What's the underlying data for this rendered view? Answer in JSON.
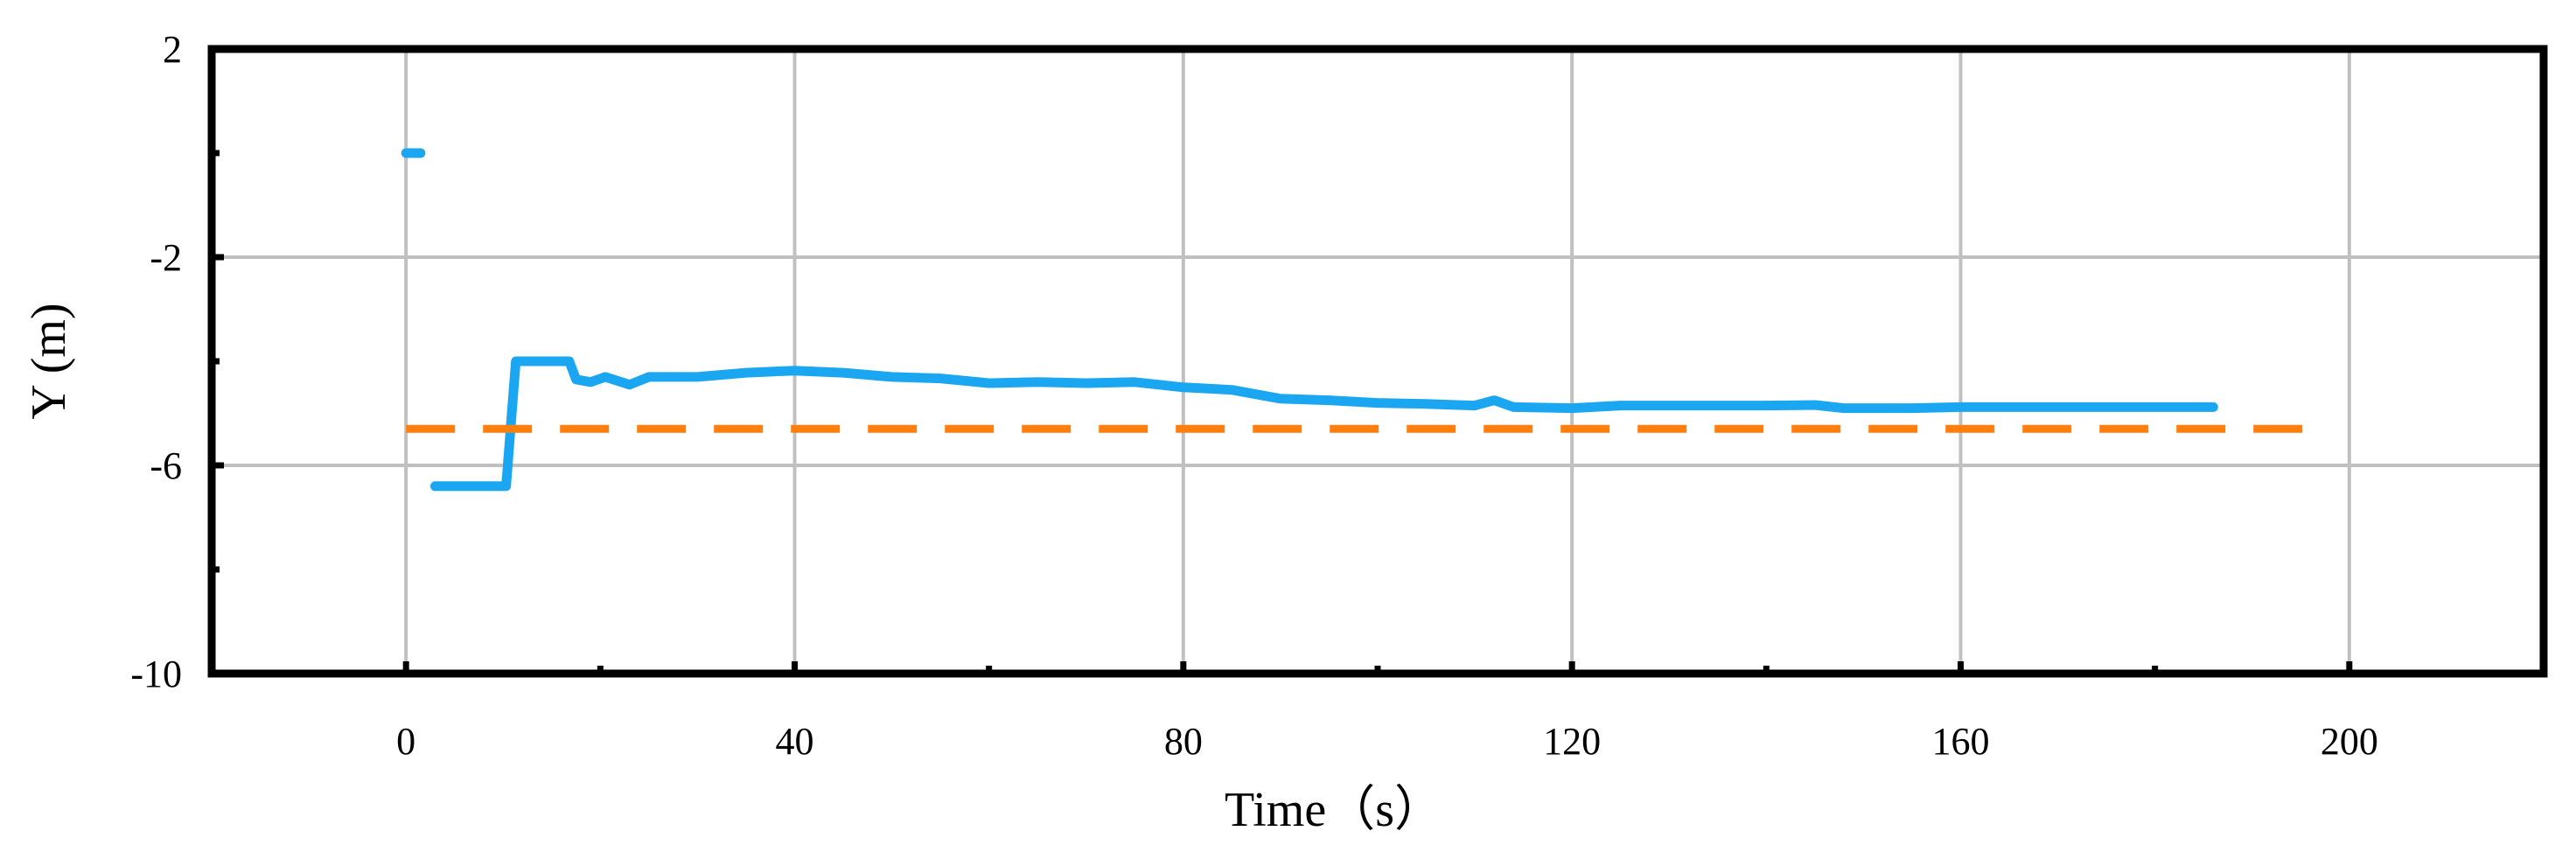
{
  "chart_data": {
    "type": "line",
    "title": "",
    "xlabel": "Time（s）",
    "ylabel": "Y (m)",
    "xlim": [
      -20,
      220
    ],
    "ylim": [
      -10,
      2
    ],
    "x_ticks": [
      0,
      40,
      80,
      120,
      160,
      200
    ],
    "y_ticks": [
      2,
      -2,
      -6,
      -10
    ],
    "x_minor_ticks": [
      20,
      60,
      100,
      140,
      180
    ],
    "y_minor_ticks": [
      0,
      -4,
      -8
    ],
    "grid": true,
    "colors": {
      "measured": "#1ba6f2",
      "reference": "#ff7f0e",
      "grid": "#c0c0c0",
      "frame": "#000000"
    },
    "series": [
      {
        "style": "solid",
        "segments": [
          [
            [
              0.0,
              0.0
            ],
            [
              1.5,
              0.0
            ]
          ],
          [
            [
              3.0,
              -6.4
            ],
            [
              10.3,
              -6.4
            ],
            [
              11.3,
              -4.0
            ],
            [
              16.8,
              -4.0
            ],
            [
              17.5,
              -4.35
            ],
            [
              19.0,
              -4.4
            ],
            [
              20.5,
              -4.3
            ],
            [
              23.0,
              -4.45
            ],
            [
              25.0,
              -4.3
            ],
            [
              30.0,
              -4.3
            ],
            [
              35.0,
              -4.22
            ],
            [
              40.0,
              -4.18
            ],
            [
              45.0,
              -4.22
            ],
            [
              50.0,
              -4.3
            ],
            [
              55.0,
              -4.33
            ],
            [
              60.0,
              -4.42
            ],
            [
              65.0,
              -4.4
            ],
            [
              70.0,
              -4.42
            ],
            [
              75.0,
              -4.4
            ],
            [
              80.0,
              -4.5
            ],
            [
              85.0,
              -4.55
            ],
            [
              90.0,
              -4.72
            ],
            [
              95.0,
              -4.75
            ],
            [
              100.0,
              -4.8
            ],
            [
              105.0,
              -4.82
            ],
            [
              110.0,
              -4.85
            ],
            [
              112.0,
              -4.75
            ],
            [
              114.0,
              -4.88
            ],
            [
              120.0,
              -4.9
            ],
            [
              125.0,
              -4.85
            ],
            [
              130.0,
              -4.85
            ],
            [
              140.0,
              -4.85
            ],
            [
              145.0,
              -4.84
            ],
            [
              148.0,
              -4.9
            ],
            [
              155.0,
              -4.9
            ],
            [
              160.0,
              -4.88
            ],
            [
              170.0,
              -4.88
            ],
            [
              180.0,
              -4.88
            ],
            [
              186.0,
              -4.88
            ]
          ]
        ]
      },
      {
        "style": "dashed",
        "segments": [
          [
            [
              0.0,
              -5.3
            ],
            [
              197.0,
              -5.3
            ]
          ]
        ]
      }
    ]
  }
}
